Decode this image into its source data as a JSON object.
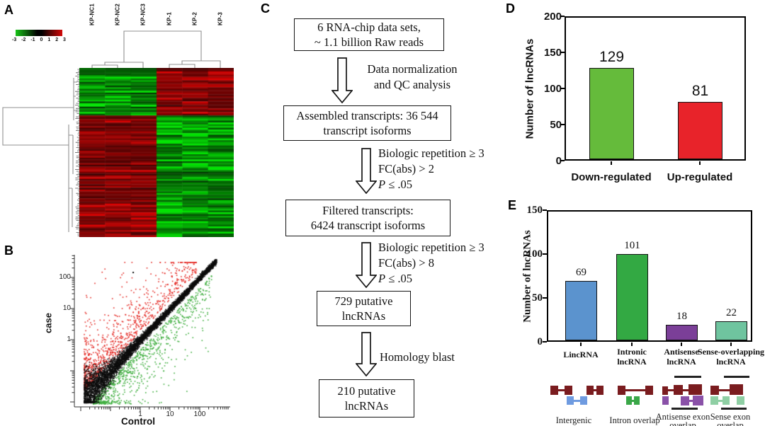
{
  "colors": {
    "maroon": "#7a1c1f",
    "gene_blue": "#6f9be0",
    "gene_green": "#3aa748",
    "gene_purple": "#8a51a8",
    "gene_lightgreen": "#8fcfa4"
  },
  "panels": {
    "a": {
      "label": "A",
      "col_labels": [
        "KP-NC1",
        "KP-NC2",
        "KP-NC3",
        "KP-1",
        "KP-2",
        "KP-3"
      ],
      "key_ticks": [
        "-3",
        "-2",
        "-1",
        "0",
        "1",
        "2",
        "3"
      ]
    },
    "b": {
      "label": "B",
      "ylabel": "case",
      "xlabel": "Control",
      "yticks": [
        "100",
        "10",
        "1"
      ],
      "xticks": [
        "1",
        "10",
        "100"
      ]
    },
    "c": {
      "label": "C",
      "boxes": [
        [
          "6 RNA-chip data sets,",
          "~ 1.1 billion Raw reads"
        ],
        [
          "Assembled transcripts: 36 544",
          "transcript isoforms"
        ],
        [
          "Filtered transcripts:",
          "6424 transcript isoforms"
        ],
        [
          "729 putative",
          "lncRNAs"
        ],
        [
          "210 putative",
          "lncRNAs"
        ]
      ],
      "steps": [
        {
          "lines": [
            "Data normalization",
            "and QC analysis"
          ]
        },
        {
          "lines": [
            "Biologic repetition ≥ 3",
            "FC(abs) > 2"
          ],
          "p_italic": "P",
          "p_rest": " ≤ .05"
        },
        {
          "lines": [
            "Biologic repetition ≥ 3",
            "FC(abs) > 8"
          ],
          "p_italic": "P",
          "p_rest": " ≤ .05"
        },
        {
          "lines": [
            "Homology blast"
          ]
        }
      ]
    },
    "d": {
      "label": "D",
      "ylabel": "Number of lncRNAs",
      "yticks": [
        "200",
        "150",
        "100",
        "50",
        "0"
      ]
    },
    "e": {
      "label": "E",
      "ylabel": "Number of lncRNAs",
      "yticks": [
        "150",
        "100",
        "50",
        "0"
      ],
      "cat_lines": [
        [
          "LincRNA",
          ""
        ],
        [
          "Intronic",
          "lncRNA"
        ],
        [
          "Antisense",
          "lncRNA"
        ],
        [
          "Sense-overlapping",
          "lncRNA"
        ]
      ],
      "gene_labels": [
        [
          "Intergenic",
          ""
        ],
        [
          "Intron overlap",
          ""
        ],
        [
          "Antisense exon",
          "overlap"
        ],
        [
          "Sense exon",
          "overlap"
        ]
      ]
    }
  },
  "chart_data": [
    {
      "type": "heatmap",
      "panel": "A",
      "columns": [
        "KP-NC1",
        "KP-NC2",
        "KP-NC3",
        "KP-1",
        "KP-2",
        "KP-3"
      ],
      "rows": 96,
      "seed": 7,
      "split_fraction": 0.28,
      "color_scale": {
        "domain": [
          -3,
          3
        ],
        "ticks": [
          -3,
          -2,
          -1,
          0,
          1,
          2,
          3
        ],
        "low": "#17c417",
        "mid": "#000000",
        "high": "#d40808"
      },
      "pattern": [
        {
          "block": "top ~28% of rows",
          "KP-NC_columns": "green (low)",
          "KP_columns": "dark red (high)"
        },
        {
          "block": "bottom ~72% of rows",
          "KP-NC_columns": "dark red (high)",
          "KP_columns": "green (low)"
        }
      ],
      "clustering": "hierarchical dendrograms on rows (left) and columns (top); KP-NC1-3 cluster together, KP-1-3 cluster together"
    },
    {
      "type": "scatter",
      "panel": "B",
      "xlabel": "Control",
      "ylabel": "case",
      "xscale": "log",
      "yscale": "log",
      "x_ticks": [
        1,
        10,
        100
      ],
      "y_ticks": [
        1,
        10,
        100
      ],
      "seed": 42,
      "series": [
        {
          "name": "unchanged transcripts (diagonal band)",
          "color": "#0d0d0d",
          "n": 6500
        },
        {
          "name": "up-regulated in case (above diagonal)",
          "color": "#e42a25",
          "n": 950
        },
        {
          "name": "down-regulated in case (below diagonal)",
          "color": "#3fae3f",
          "n": 950
        }
      ]
    },
    {
      "type": "bar",
      "panel": "D",
      "title": "",
      "categories": [
        "Down-regulated",
        "Up-regulated"
      ],
      "values": [
        129,
        81
      ],
      "colors": [
        "#65bb3b",
        "#e8232a"
      ],
      "ylabel": "Number of lncRNAs",
      "ylim": [
        0,
        200
      ],
      "yticks": [
        0,
        50,
        100,
        150,
        200
      ]
    },
    {
      "type": "bar",
      "panel": "E",
      "title": "",
      "categories": [
        "LincRNA",
        "Intronic lncRNA",
        "Antisense lncRNA",
        "Sense-overlapping lncRNA"
      ],
      "values": [
        69,
        101,
        18,
        22
      ],
      "colors": [
        "#5b93ce",
        "#33a943",
        "#7b3f98",
        "#6fc49f"
      ],
      "ylabel": "Number of lncRNAs",
      "ylim": [
        0,
        150
      ],
      "yticks": [
        0,
        50,
        100,
        150
      ]
    }
  ]
}
